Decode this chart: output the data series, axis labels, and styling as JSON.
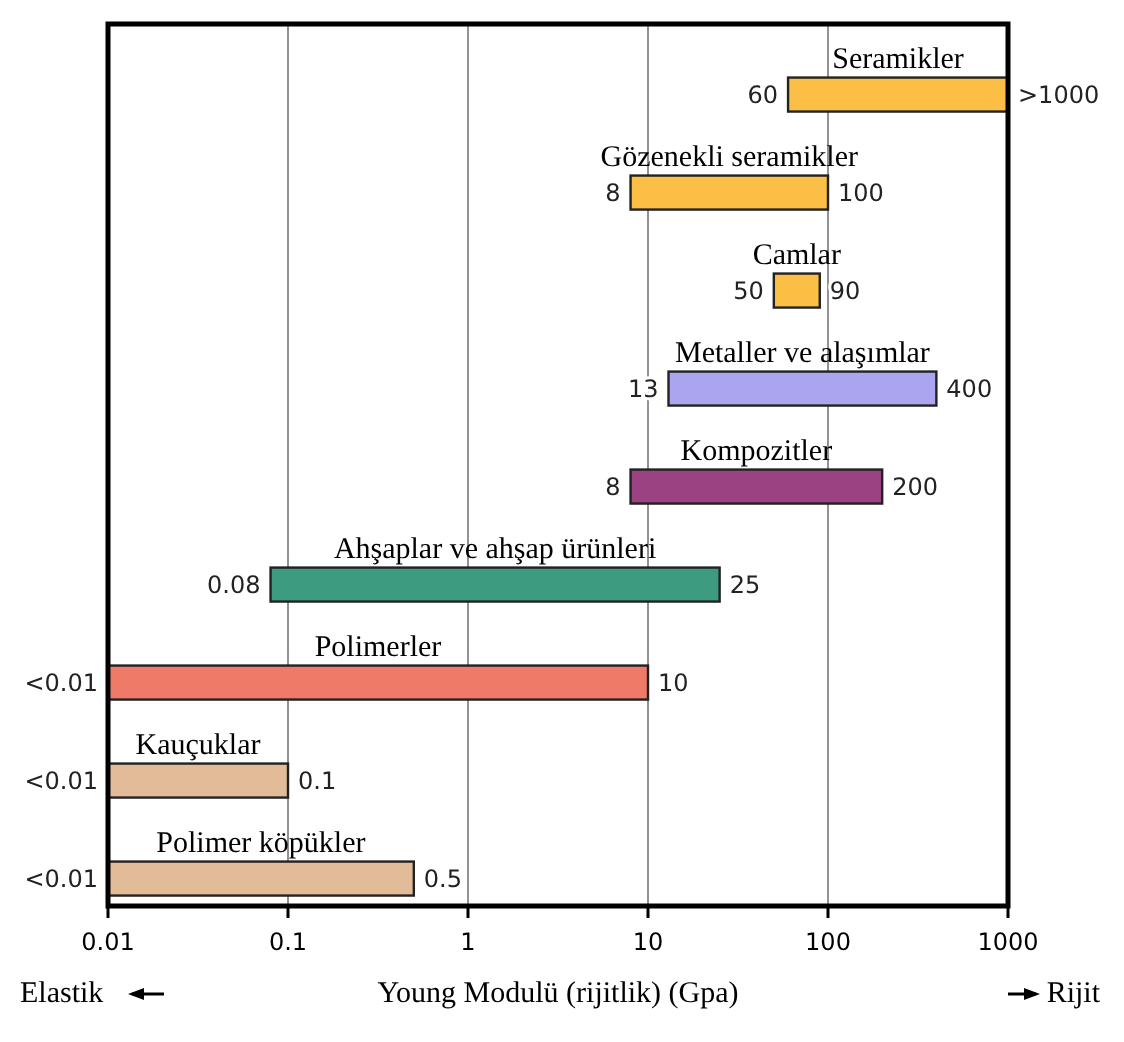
{
  "chart_data": {
    "type": "bar",
    "orientation": "horizontal",
    "xlabel": "Young Modulü (rijitlik) (Gpa)",
    "categories": [
      "Seramikler",
      "Gözenekli seramikler",
      "Camlar",
      "Metaller ve alaşımlar",
      "Kompozitler",
      "Ahşaplar ve ahşap ürünleri",
      "Polimerler",
      "Kauçuklar",
      "Polimer köpükler"
    ],
    "base": [
      60,
      8,
      50,
      13,
      8,
      0.08,
      0.01,
      0.01,
      0.01
    ],
    "values": [
      940,
      92,
      40,
      387,
      192,
      24.92,
      9.99,
      0.09,
      0.49
    ],
    "colors": [
      "#fbbf45",
      "#fbbf45",
      "#fbbf45",
      "#aaa5ee",
      "#9a4282",
      "#3d9b80",
      "#f07a68",
      "#e2bc98",
      "#e2bc98"
    ],
    "log": "x",
    "xlim": [
      0.01,
      1000
    ],
    "xticks": [
      0.01,
      0.1,
      1,
      10,
      100,
      1000
    ],
    "grid": "x",
    "annotations": [
      {
        "text": "60",
        "x": 60,
        "y": "Seramikler"
      },
      {
        "text": ">1000",
        "x": 1000,
        "y": "Seramikler"
      },
      {
        "text": "8",
        "x": 8,
        "y": "Gözenekli seramikler"
      },
      {
        "text": "100",
        "x": 100,
        "y": "Gözenekli seramikler"
      },
      {
        "text": "50",
        "x": 50,
        "y": "Camlar"
      },
      {
        "text": "90",
        "x": 90,
        "y": "Camlar"
      },
      {
        "text": "13",
        "x": 13,
        "y": "Metaller ve alaşımlar"
      },
      {
        "text": "400",
        "x": 400,
        "y": "Metaller ve alaşımlar"
      },
      {
        "text": "8",
        "x": 8,
        "y": "Kompozitler"
      },
      {
        "text": "200",
        "x": 200,
        "y": "Kompozitler"
      },
      {
        "text": "0.08",
        "x": 0.08,
        "y": "Ahşaplar ve ahşap ürünleri"
      },
      {
        "text": "25",
        "x": 25,
        "y": "Ahşaplar ve ahşap ürünleri"
      },
      {
        "text": "<0.01",
        "x": 0.01,
        "y": "Polimerler"
      },
      {
        "text": "10",
        "x": 10,
        "y": "Polimerler"
      },
      {
        "text": "<0.01",
        "x": 0.01,
        "y": "Kauçuklar"
      },
      {
        "text": "0.1",
        "x": 0.1,
        "y": "Kauçuklar"
      },
      {
        "text": "<0.01",
        "x": 0.01,
        "y": "Polimer köpükler"
      },
      {
        "text": "0.5",
        "x": 0.5,
        "y": "Polimer köpükler"
      },
      "Elastik",
      "Rijit"
    ]
  }
}
